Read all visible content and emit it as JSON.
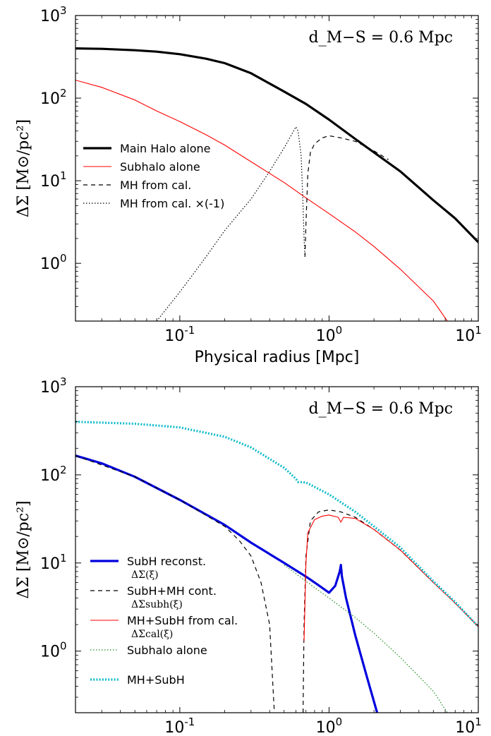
{
  "chart_data": [
    {
      "type": "line",
      "xlabel": "Physical radius [Mpc]",
      "ylabel": "ΔΣ [M⊙/pc²]",
      "xscale": "log",
      "yscale": "log",
      "xlim": [
        0.02,
        10
      ],
      "ylim": [
        0.2,
        1000
      ],
      "xticks": [
        {
          "value": 0.1,
          "base": "10",
          "exp": "-1"
        },
        {
          "value": 1,
          "base": "10",
          "exp": "0"
        },
        {
          "value": 10,
          "base": "10",
          "exp": "1"
        }
      ],
      "yticks": [
        {
          "value": 1,
          "base": "10",
          "exp": "0"
        },
        {
          "value": 10,
          "base": "10",
          "exp": "1"
        },
        {
          "value": 100,
          "base": "10",
          "exp": "2"
        },
        {
          "value": 1000,
          "base": "10",
          "exp": "3"
        }
      ],
      "annotation": "d_M−S = 0.6 Mpc",
      "legend_position": "middle-left",
      "series": [
        {
          "name": "Main Halo alone",
          "color": "#000000",
          "style": "solid-thick",
          "points": [
            [
              0.02,
              400
            ],
            [
              0.03,
              395
            ],
            [
              0.05,
              380
            ],
            [
              0.07,
              365
            ],
            [
              0.1,
              340
            ],
            [
              0.15,
              300
            ],
            [
              0.2,
              265
            ],
            [
              0.3,
              200
            ],
            [
              0.5,
              120
            ],
            [
              0.7,
              85
            ],
            [
              1,
              55
            ],
            [
              1.5,
              32
            ],
            [
              2,
              22
            ],
            [
              3,
              13
            ],
            [
              5,
              5.8
            ],
            [
              7,
              3.5
            ],
            [
              10,
              1.8
            ]
          ]
        },
        {
          "name": "Subhalo alone",
          "color": "#ff0000",
          "style": "solid-thin",
          "points": [
            [
              0.02,
              165
            ],
            [
              0.03,
              135
            ],
            [
              0.05,
              95
            ],
            [
              0.07,
              70
            ],
            [
              0.1,
              52
            ],
            [
              0.15,
              36
            ],
            [
              0.2,
              27
            ],
            [
              0.3,
              17
            ],
            [
              0.5,
              9.5
            ],
            [
              0.7,
              6.2
            ],
            [
              1,
              4
            ],
            [
              1.5,
              2.4
            ],
            [
              2,
              1.6
            ],
            [
              3,
              0.85
            ],
            [
              5,
              0.35
            ],
            [
              6.2,
              0.2
            ]
          ]
        },
        {
          "name": "MH from cal.",
          "color": "#000000",
          "style": "dashed",
          "points": [
            [
              0.69,
              1.2
            ],
            [
              0.7,
              3
            ],
            [
              0.72,
              12
            ],
            [
              0.75,
              22
            ],
            [
              0.8,
              28
            ],
            [
              0.9,
              33
            ],
            [
              1,
              35
            ],
            [
              1.2,
              33
            ],
            [
              1.5,
              30
            ],
            [
              2,
              23
            ],
            [
              2.5,
              18
            ]
          ]
        },
        {
          "name": "MH from cal. ×(-1)",
          "color": "#000000",
          "style": "dotted",
          "points": [
            [
              0.07,
              0.2
            ],
            [
              0.1,
              0.45
            ],
            [
              0.15,
              1.2
            ],
            [
              0.2,
              2.5
            ],
            [
              0.3,
              6
            ],
            [
              0.4,
              13
            ],
            [
              0.5,
              25
            ],
            [
              0.6,
              45
            ],
            [
              0.62,
              40
            ],
            [
              0.65,
              20
            ],
            [
              0.67,
              5
            ],
            [
              0.68,
              2
            ],
            [
              0.69,
              1.2
            ]
          ]
        }
      ]
    },
    {
      "type": "line",
      "xlabel": "Physical radius [Mpc]",
      "ylabel": "ΔΣ [M⊙/pc²]",
      "xscale": "log",
      "yscale": "log",
      "xlim": [
        0.02,
        10
      ],
      "ylim": [
        0.2,
        1000
      ],
      "xticks": [
        {
          "value": 0.1,
          "base": "10",
          "exp": "-1"
        },
        {
          "value": 1,
          "base": "10",
          "exp": "0"
        },
        {
          "value": 10,
          "base": "10",
          "exp": "1"
        }
      ],
      "yticks": [
        {
          "value": 1,
          "base": "10",
          "exp": "0"
        },
        {
          "value": 10,
          "base": "10",
          "exp": "1"
        },
        {
          "value": 100,
          "base": "10",
          "exp": "2"
        },
        {
          "value": 1000,
          "base": "10",
          "exp": "3"
        }
      ],
      "annotation": "d_M−S = 0.6 Mpc",
      "legend_position": "lower-left",
      "series": [
        {
          "name": "SubH reconst.",
          "sublabel": "ΔΣ(ξ)",
          "color": "#0000dd",
          "style": "solid-thick",
          "points": [
            [
              0.02,
              165
            ],
            [
              0.03,
              135
            ],
            [
              0.05,
              95
            ],
            [
              0.1,
              52
            ],
            [
              0.2,
              27
            ],
            [
              0.3,
              17
            ],
            [
              0.5,
              10
            ],
            [
              0.7,
              7
            ],
            [
              0.85,
              5.6
            ],
            [
              1,
              4.6
            ],
            [
              1.1,
              5.5
            ],
            [
              1.18,
              8
            ],
            [
              1.2,
              9.5
            ],
            [
              1.22,
              7
            ],
            [
              1.3,
              4
            ],
            [
              1.5,
              1.5
            ],
            [
              1.8,
              0.5
            ],
            [
              2.1,
              0.2
            ]
          ]
        },
        {
          "name": "SubH+MH cont.",
          "sublabel": "ΔΣsubh(ξ)",
          "color": "#000000",
          "style": "dashed",
          "points": [
            [
              0.02,
              165
            ],
            [
              0.05,
              95
            ],
            [
              0.1,
              52
            ],
            [
              0.2,
              26
            ],
            [
              0.25,
              18
            ],
            [
              0.3,
              12
            ],
            [
              0.35,
              6
            ],
            [
              0.4,
              2
            ],
            [
              0.43,
              0.2
            ]
          ]
        },
        {
          "name": "SubH+MH cont. (outer)",
          "color": "#000000",
          "style": "dashed",
          "legend": false,
          "points": [
            [
              0.67,
              0.2
            ],
            [
              0.68,
              2
            ],
            [
              0.7,
              12
            ],
            [
              0.75,
              30
            ],
            [
              0.85,
              38
            ],
            [
              1,
              40
            ],
            [
              1.2,
              38
            ],
            [
              1.5,
              33
            ],
            [
              2,
              24
            ],
            [
              3,
              14
            ],
            [
              5,
              6
            ],
            [
              7,
              3.5
            ],
            [
              10,
              1.9
            ]
          ]
        },
        {
          "name": "MH+SubH from cal.",
          "sublabel": "ΔΣcal(ξ)",
          "color": "#ff0000",
          "style": "solid-thin",
          "points": [
            [
              0.68,
              1.3
            ],
            [
              0.7,
              10
            ],
            [
              0.72,
              22
            ],
            [
              0.8,
              31
            ],
            [
              0.9,
              34
            ],
            [
              1,
              35
            ],
            [
              1.15,
              33
            ],
            [
              1.2,
              29
            ],
            [
              1.25,
              33
            ],
            [
              1.5,
              32
            ],
            [
              2,
              24
            ],
            [
              3,
              14
            ],
            [
              5,
              6
            ],
            [
              7,
              3.5
            ],
            [
              10,
              1.9
            ]
          ]
        },
        {
          "name": "Subhalo alone",
          "color": "#228b22",
          "style": "dotted",
          "points": [
            [
              0.5,
              9.5
            ],
            [
              0.7,
              6.2
            ],
            [
              1,
              4
            ],
            [
              1.5,
              2.4
            ],
            [
              2,
              1.6
            ],
            [
              3,
              0.85
            ],
            [
              5,
              0.35
            ],
            [
              6.2,
              0.2
            ]
          ]
        },
        {
          "name": "MH+SubH",
          "color": "#11bbcc",
          "style": "dotted-thick",
          "points": [
            [
              0.02,
              400
            ],
            [
              0.05,
              380
            ],
            [
              0.1,
              345
            ],
            [
              0.2,
              270
            ],
            [
              0.3,
              205
            ],
            [
              0.5,
              120
            ],
            [
              0.6,
              90
            ],
            [
              0.62,
              83
            ],
            [
              0.7,
              82
            ],
            [
              1,
              60
            ],
            [
              1.5,
              38
            ],
            [
              2,
              26
            ],
            [
              3,
              15
            ],
            [
              5,
              6.2
            ],
            [
              7,
              3.6
            ],
            [
              10,
              1.9
            ]
          ]
        }
      ]
    }
  ]
}
